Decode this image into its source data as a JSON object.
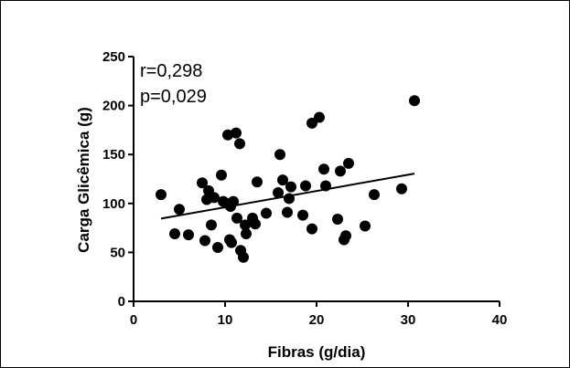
{
  "chart_data": {
    "type": "scatter",
    "xlabel": "Fibras (g/dia)",
    "ylabel": "Carga Glicêmica (g)",
    "xlim": [
      0,
      40
    ],
    "ylim": [
      0,
      250
    ],
    "x_ticks": [
      "0",
      "10",
      "20",
      "30",
      "40"
    ],
    "y_ticks": [
      "0",
      "50",
      "100",
      "150",
      "200",
      "250"
    ],
    "x_tick_values": [
      0,
      10,
      20,
      30,
      40
    ],
    "y_tick_values": [
      0,
      50,
      100,
      150,
      200,
      250
    ],
    "annotations": [
      "r=0,298",
      "p=0,029"
    ],
    "grid": false,
    "legend": "none",
    "marker_color": "#000000",
    "points": [
      {
        "x": 3.0,
        "y": 109
      },
      {
        "x": 4.5,
        "y": 69
      },
      {
        "x": 5.0,
        "y": 94
      },
      {
        "x": 6.0,
        "y": 68
      },
      {
        "x": 7.5,
        "y": 121
      },
      {
        "x": 7.8,
        "y": 62
      },
      {
        "x": 8.0,
        "y": 104
      },
      {
        "x": 8.2,
        "y": 113
      },
      {
        "x": 8.5,
        "y": 78
      },
      {
        "x": 8.8,
        "y": 106
      },
      {
        "x": 9.2,
        "y": 55
      },
      {
        "x": 9.6,
        "y": 129
      },
      {
        "x": 9.8,
        "y": 102
      },
      {
        "x": 10.2,
        "y": 100
      },
      {
        "x": 10.3,
        "y": 170
      },
      {
        "x": 10.5,
        "y": 63
      },
      {
        "x": 10.6,
        "y": 97
      },
      {
        "x": 10.7,
        "y": 60
      },
      {
        "x": 10.9,
        "y": 102
      },
      {
        "x": 11.2,
        "y": 172
      },
      {
        "x": 11.3,
        "y": 85
      },
      {
        "x": 11.6,
        "y": 161
      },
      {
        "x": 11.7,
        "y": 52
      },
      {
        "x": 12.0,
        "y": 45
      },
      {
        "x": 12.2,
        "y": 78
      },
      {
        "x": 12.3,
        "y": 69
      },
      {
        "x": 13.0,
        "y": 85
      },
      {
        "x": 13.3,
        "y": 79
      },
      {
        "x": 13.5,
        "y": 122
      },
      {
        "x": 14.5,
        "y": 90
      },
      {
        "x": 15.8,
        "y": 111
      },
      {
        "x": 16.0,
        "y": 150
      },
      {
        "x": 16.3,
        "y": 124
      },
      {
        "x": 16.8,
        "y": 91
      },
      {
        "x": 17.0,
        "y": 105
      },
      {
        "x": 17.2,
        "y": 117
      },
      {
        "x": 18.5,
        "y": 88
      },
      {
        "x": 18.8,
        "y": 118
      },
      {
        "x": 19.5,
        "y": 74
      },
      {
        "x": 19.5,
        "y": 182
      },
      {
        "x": 20.3,
        "y": 188
      },
      {
        "x": 20.8,
        "y": 135
      },
      {
        "x": 21.0,
        "y": 118
      },
      {
        "x": 22.3,
        "y": 84
      },
      {
        "x": 22.6,
        "y": 133
      },
      {
        "x": 23.0,
        "y": 63
      },
      {
        "x": 23.2,
        "y": 67
      },
      {
        "x": 23.5,
        "y": 141
      },
      {
        "x": 25.3,
        "y": 77
      },
      {
        "x": 26.3,
        "y": 109
      },
      {
        "x": 29.3,
        "y": 115
      },
      {
        "x": 30.7,
        "y": 205
      }
    ],
    "regression_line": {
      "x": [
        3,
        30.7
      ],
      "y": [
        84.5,
        130.5
      ]
    }
  }
}
